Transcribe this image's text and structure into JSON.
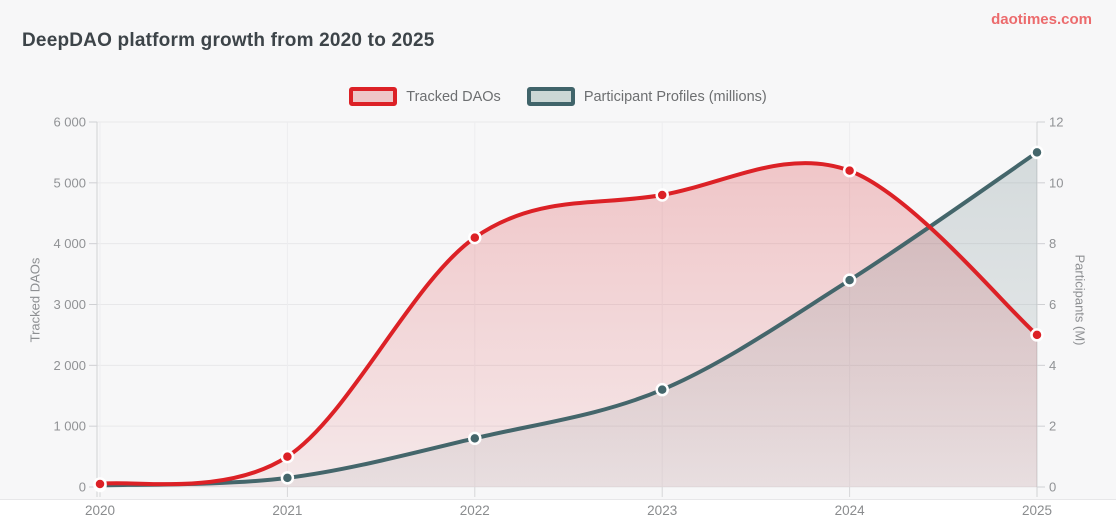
{
  "page": {
    "title": "DeepDAO platform growth from 2020 to 2025",
    "watermark": "daotimes.com",
    "watermark_color": "#ec6b6d",
    "background": "#f7f7f8"
  },
  "legend": {
    "items": [
      {
        "label": "Tracked DAOs",
        "stroke": "#dc2126",
        "fill": "#eec6c7"
      },
      {
        "label": "Participant Profiles (millions)",
        "stroke": "#40646a",
        "fill": "#cbd7d5"
      }
    ]
  },
  "chart_data": {
    "type": "line",
    "title": "DeepDAO platform growth from 2020 to 2025",
    "x": [
      "2020",
      "2021",
      "2022",
      "2023",
      "2024",
      "2025"
    ],
    "series": [
      {
        "name": "Tracked DAOs",
        "axis": "left",
        "values": [
          50,
          500,
          4100,
          4800,
          5200,
          2500
        ],
        "color": "#dc2126",
        "area_top": "rgba(216,34,40,0.25)",
        "area_bottom": "rgba(216,34,40,0.07)"
      },
      {
        "name": "Participant Profiles (millions)",
        "axis": "right",
        "values": [
          0.05,
          0.3,
          1.6,
          3.2,
          6.8,
          11
        ],
        "color": "#44666b",
        "area_top": "rgba(64,96,100,0.20)",
        "area_bottom": "rgba(64,96,100,0.07)"
      }
    ],
    "left_axis": {
      "label": "Tracked DAOs",
      "min": 0,
      "max": 6000,
      "tick_step": 1000,
      "tick_labels": [
        "0",
        "1 000",
        "2 000",
        "3 000",
        "4 000",
        "5 000",
        "6 000"
      ]
    },
    "right_axis": {
      "label": "Participants (M)",
      "min": 0,
      "max": 12,
      "tick_step": 2,
      "tick_labels": [
        "0",
        "2",
        "4",
        "6",
        "8",
        "10",
        "12"
      ]
    },
    "grid": true,
    "legend_position": "top",
    "smoothing": "catmull-rom",
    "marker_style": "filled-circle-white-ring"
  }
}
